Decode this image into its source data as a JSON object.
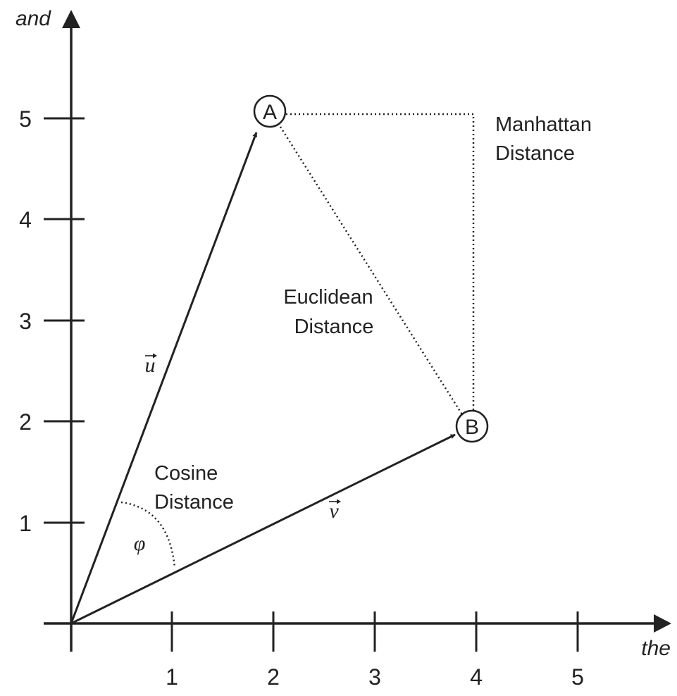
{
  "axes": {
    "x_title": "the",
    "y_title": "and",
    "x_ticks": [
      "1",
      "2",
      "3",
      "4",
      "5"
    ],
    "y_ticks": [
      "1",
      "2",
      "3",
      "4",
      "5"
    ],
    "x_range": [
      0,
      5
    ],
    "y_range": [
      0,
      5
    ]
  },
  "points": {
    "a": {
      "label": "A",
      "x": 2,
      "y": 5
    },
    "b": {
      "label": "B",
      "x": 4,
      "y": 2
    }
  },
  "vectors": {
    "u": {
      "label": "u"
    },
    "v": {
      "label": "v"
    }
  },
  "annotations": {
    "manhattan": [
      "Manhattan",
      "Distance"
    ],
    "euclidean": [
      "Euclidean",
      "Distance"
    ],
    "cosine": [
      "Cosine",
      "Distance"
    ],
    "angle": "φ"
  },
  "colors": {
    "ink": "#222222",
    "background": "#ffffff"
  }
}
